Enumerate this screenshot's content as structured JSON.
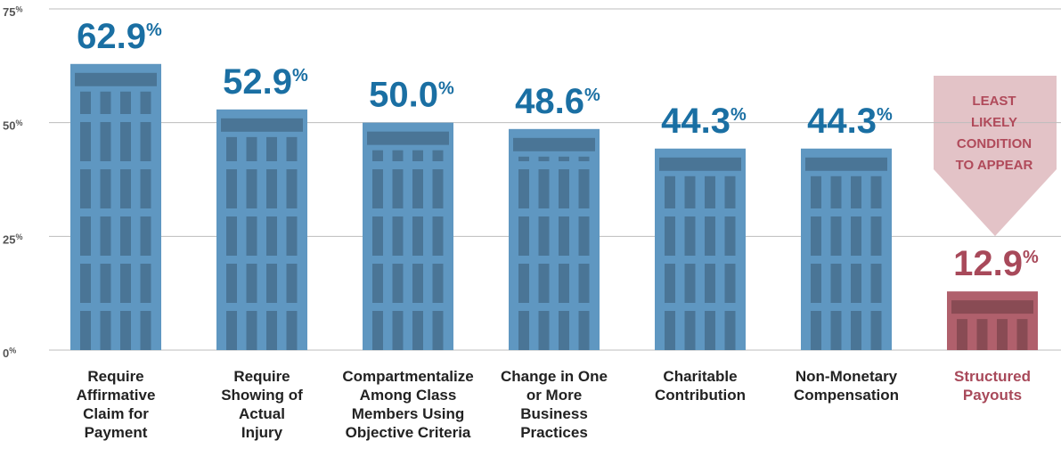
{
  "chart_data": {
    "type": "bar",
    "categories": [
      "Require Affirmative Claim for Payment",
      "Require Showing of Actual Injury",
      "Compartmentalize Among Class Members Using Objective Criteria",
      "Change in One or More Business Practices",
      "Charitable Contribution",
      "Non-Monetary Compensation",
      "Structured Payouts"
    ],
    "values": [
      62.9,
      52.9,
      50.0,
      48.6,
      44.3,
      44.3,
      12.9
    ],
    "value_labels": [
      "62.9%",
      "52.9%",
      "50.0%",
      "48.6%",
      "44.3%",
      "44.3%",
      "12.9%"
    ],
    "colors": [
      "#5f97c1",
      "#5f97c1",
      "#5f97c1",
      "#5f97c1",
      "#5f97c1",
      "#5f97c1",
      "#b0606c"
    ],
    "value_label_colors": [
      "#1a6fa3",
      "#1a6fa3",
      "#1a6fa3",
      "#1a6fa3",
      "#1a6fa3",
      "#1a6fa3",
      "#a8495a"
    ],
    "category_label_colors": [
      "#222222",
      "#222222",
      "#222222",
      "#222222",
      "#222222",
      "#222222",
      "#a8495a"
    ],
    "ylim": [
      0,
      75
    ],
    "yticks": [
      {
        "value": 0,
        "label": "0%"
      },
      {
        "value": 25,
        "label": "25%"
      },
      {
        "value": 50,
        "label": "50%"
      },
      {
        "value": 75,
        "label": "75%"
      }
    ],
    "grid": true,
    "annotation": "LEAST LIKELY CONDITION TO APPEAR"
  }
}
